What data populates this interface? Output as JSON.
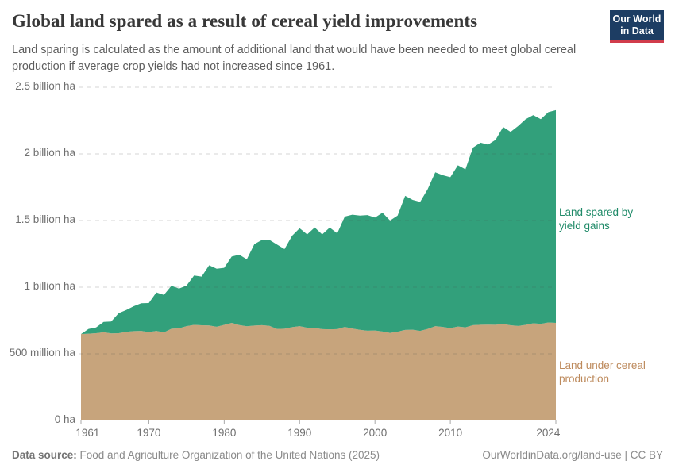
{
  "header": {
    "title": "Global land spared as a result of cereal yield improvements",
    "subtitle": "Land sparing is calculated as the amount of additional land that would have been needed to meet global cereal production if average crop yields had not increased since 1961.",
    "logo": {
      "line1": "Our World",
      "line2": "in Data",
      "bg_color": "#1d3d63",
      "accent_color": "#d13c4b"
    }
  },
  "chart_data": {
    "type": "area",
    "stacked": true,
    "title": "Global land spared as a result of cereal yield improvements",
    "unit": "hectares",
    "xlabel": "",
    "ylabel": "",
    "ylim": [
      0,
      2500000000
    ],
    "grid": "dashed",
    "legend_position": "right",
    "x": [
      1961,
      1962,
      1963,
      1964,
      1965,
      1966,
      1967,
      1968,
      1969,
      1970,
      1971,
      1972,
      1973,
      1974,
      1975,
      1976,
      1977,
      1978,
      1979,
      1980,
      1981,
      1982,
      1983,
      1984,
      1985,
      1986,
      1987,
      1988,
      1989,
      1990,
      1991,
      1992,
      1993,
      1994,
      1995,
      1996,
      1997,
      1998,
      1999,
      2000,
      2001,
      2002,
      2003,
      2004,
      2005,
      2006,
      2007,
      2008,
      2009,
      2010,
      2011,
      2012,
      2013,
      2014,
      2015,
      2016,
      2017,
      2018,
      2019,
      2020,
      2021,
      2022,
      2023,
      2024
    ],
    "series": [
      {
        "name": "Land under cereal production",
        "color": "#c7a47c",
        "label_color": "#bd8a5c",
        "values_million_ha": [
          648,
          651,
          655,
          662,
          653,
          655,
          665,
          670,
          672,
          663,
          672,
          661,
          688,
          691,
          708,
          717,
          714,
          713,
          703,
          717,
          732,
          716,
          707,
          712,
          715,
          710,
          687,
          688,
          700,
          708,
          696,
          694,
          685,
          684,
          685,
          702,
          690,
          680,
          673,
          675,
          667,
          657,
          666,
          679,
          681,
          672,
          687,
          708,
          702,
          693,
          705,
          699,
          715,
          718,
          719,
          718,
          724,
          714,
          709,
          717,
          729,
          725,
          735,
          732
        ]
      },
      {
        "name": "Land spared by yield gains",
        "color": "#32a07b",
        "label_color": "#1f8a68",
        "values_million_ha": [
          0,
          36,
          43,
          77,
          90,
          150,
          164,
          187,
          207,
          218,
          289,
          281,
          323,
          298,
          304,
          371,
          366,
          451,
          435,
          428,
          498,
          528,
          502,
          611,
          639,
          645,
          633,
          598,
          685,
          734,
          700,
          754,
          711,
          763,
          719,
          828,
          854,
          857,
          868,
          847,
          892,
          843,
          871,
          1006,
          974,
          968,
          1049,
          1154,
          1138,
          1132,
          1209,
          1185,
          1332,
          1366,
          1350,
          1388,
          1478,
          1451,
          1500,
          1544,
          1562,
          1536,
          1578,
          1596
        ]
      }
    ],
    "y_ticks": [
      {
        "value_million_ha": 0,
        "label": "0 ha"
      },
      {
        "value_million_ha": 500,
        "label": "500 million ha"
      },
      {
        "value_million_ha": 1000,
        "label": "1 billion ha"
      },
      {
        "value_million_ha": 1500,
        "label": "1.5 billion ha"
      },
      {
        "value_million_ha": 2000,
        "label": "2 billion ha"
      },
      {
        "value_million_ha": 2500,
        "label": "2.5 billion ha"
      }
    ],
    "x_ticks": [
      1961,
      1970,
      1980,
      1990,
      2000,
      2010,
      2024
    ]
  },
  "footer": {
    "source_label": "Data source:",
    "source_text": " Food and Agriculture Organization of the United Nations (2025)",
    "right_text": "OurWorldinData.org/land-use | CC BY"
  }
}
